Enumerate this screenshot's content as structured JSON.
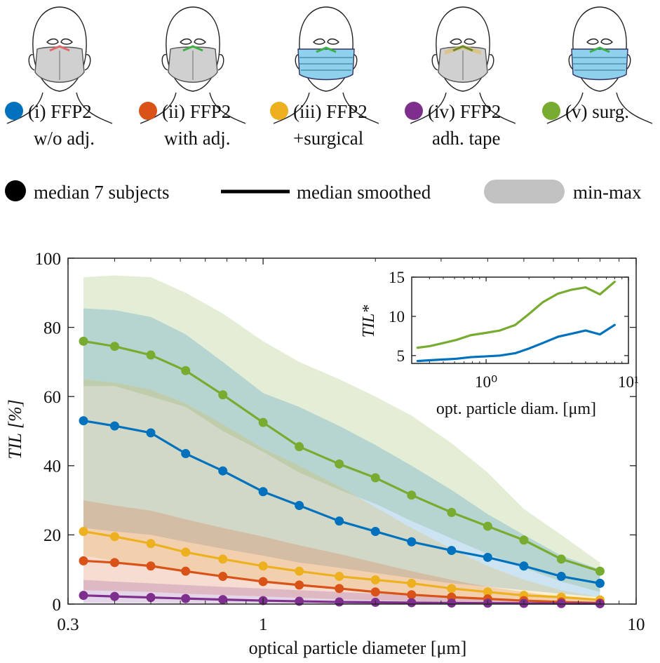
{
  "legend": {
    "masks": [
      {
        "line1": "(i) FFP2",
        "line2": "w/o adj.",
        "color": "#0072BD"
      },
      {
        "line1": "(ii) FFP2",
        "line2": "with adj.",
        "color": "#D95319"
      },
      {
        "line1": "(iii) FFP2",
        "line2": "+surgical",
        "color": "#EDB120"
      },
      {
        "line1": "(iv) FFP2",
        "line2": "adh. tape",
        "color": "#7E2F8E"
      },
      {
        "line1": "(v) surg.",
        "line2": "",
        "color": "#77AC30"
      }
    ],
    "median_label": "median 7 subjects",
    "smoothed_label": "median smoothed",
    "minmax_label": "min-max"
  },
  "chart_data": [
    {
      "type": "line",
      "xscale": "log",
      "xlim": [
        0.3,
        10
      ],
      "ylim": [
        0,
        100
      ],
      "xlabel": "optical particle diameter [μm]",
      "ylabel": "TIL [%]",
      "xticks": [
        {
          "value": 0.3,
          "label": "0.3"
        },
        {
          "value": 1,
          "label": "1"
        },
        {
          "value": 10,
          "label": "10"
        }
      ],
      "yticks": [
        0,
        20,
        40,
        60,
        80,
        100
      ],
      "x": [
        0.33,
        0.4,
        0.5,
        0.62,
        0.78,
        1.0,
        1.25,
        1.6,
        2.0,
        2.5,
        3.2,
        4.0,
        5.0,
        6.3,
        8.0
      ],
      "series": [
        {
          "name": "(v) surg.",
          "color": "#77AC30",
          "values": [
            76,
            74.5,
            72,
            67.5,
            60.5,
            52.5,
            45.5,
            40.5,
            36.5,
            31.5,
            26.5,
            22.5,
            18.5,
            13,
            9.5
          ],
          "min": [
            63,
            63,
            60,
            57,
            50,
            44,
            38,
            33,
            29,
            24,
            19,
            14.5,
            10.5,
            6.5,
            3.5
          ],
          "max": [
            94.5,
            95,
            94.5,
            90,
            84,
            76,
            70,
            65,
            60,
            54.5,
            46.5,
            38,
            27.5,
            20,
            12
          ]
        },
        {
          "name": "(i) FFP2 w/o adj.",
          "color": "#0072BD",
          "values": [
            53,
            51.5,
            49.5,
            43.5,
            38.5,
            32.5,
            28.5,
            24,
            21,
            18,
            15.5,
            13.5,
            11,
            8,
            6
          ],
          "min": [
            22,
            21,
            20,
            18,
            16,
            14,
            12,
            10.5,
            9,
            7.5,
            6,
            5,
            4,
            3,
            2
          ],
          "max": [
            85.5,
            85,
            83,
            78,
            70,
            61,
            57,
            51.5,
            46,
            40,
            33,
            26,
            20,
            14,
            10
          ]
        },
        {
          "name": "(iii) FFP2 +surgical",
          "color": "#EDB120",
          "values": [
            21,
            19.5,
            17.5,
            15,
            13,
            11,
            9.5,
            8,
            7,
            6,
            4.5,
            3.5,
            2.5,
            2,
            1.2
          ],
          "min": [
            14,
            12.5,
            11,
            9.5,
            8,
            6.5,
            5.5,
            4.5,
            3.5,
            2.8,
            2.2,
            1.6,
            1.1,
            0.7,
            0.3
          ],
          "max": [
            65,
            64,
            62,
            58,
            52,
            45,
            40,
            34,
            28,
            22,
            16,
            11,
            7,
            4,
            2
          ]
        },
        {
          "name": "(ii) FFP2 with adj.",
          "color": "#D95319",
          "values": [
            12.5,
            12,
            11,
            9.5,
            8,
            6.5,
            5.5,
            4.5,
            3.5,
            2.7,
            2,
            1.5,
            1,
            0.6,
            0.3
          ],
          "min": [
            4,
            3.8,
            3.5,
            3,
            2.6,
            2.2,
            1.8,
            1.4,
            1.1,
            0.8,
            0.6,
            0.4,
            0.3,
            0.2,
            0.1
          ],
          "max": [
            30,
            28.5,
            27,
            24.5,
            22,
            19.5,
            17,
            14.5,
            12,
            9.5,
            7,
            5,
            3.5,
            2,
            1
          ]
        },
        {
          "name": "(iv) FFP2 adh. tape",
          "color": "#7E2F8E",
          "values": [
            2.5,
            2.2,
            1.9,
            1.6,
            1.3,
            1,
            0.8,
            0.6,
            0.5,
            0.4,
            0.3,
            0.25,
            0.2,
            0.15,
            0.1
          ],
          "min": [
            0.3,
            0.3,
            0.3,
            0.25,
            0.2,
            0.2,
            0.15,
            0.1,
            0.1,
            0.1,
            0.05,
            0.05,
            0.05,
            0.05,
            0.05
          ],
          "max": [
            7,
            6.5,
            6,
            5.5,
            5,
            4.5,
            4,
            3.5,
            3,
            2.5,
            2,
            1.5,
            1.2,
            0.8,
            0.5
          ]
        }
      ]
    },
    {
      "type": "line",
      "xscale": "log",
      "xlim": [
        0.3,
        10
      ],
      "ylim": [
        4,
        15
      ],
      "xlabel": "opt. particle diam. [μm]",
      "ylabel": "TIL*",
      "xticks": [
        {
          "value": 1,
          "label": "10⁰"
        },
        {
          "value": 10,
          "label": "10¹"
        }
      ],
      "yticks": [
        5,
        10,
        15
      ],
      "series": [
        {
          "color": "#77AC30",
          "x": [
            0.33,
            0.4,
            0.5,
            0.62,
            0.78,
            1.0,
            1.25,
            1.6,
            2.0,
            2.5,
            3.2,
            4.0,
            5.0,
            6.3,
            8.0
          ],
          "values": [
            6,
            6.2,
            6.6,
            7.0,
            7.6,
            7.9,
            8.2,
            8.9,
            10.3,
            11.8,
            12.9,
            13.4,
            13.7,
            12.8,
            14.4
          ]
        },
        {
          "color": "#0072BD",
          "x": [
            0.33,
            0.4,
            0.5,
            0.62,
            0.78,
            1.0,
            1.25,
            1.6,
            2.0,
            2.5,
            3.2,
            4.0,
            5.0,
            6.3,
            8.0
          ],
          "values": [
            4.3,
            4.4,
            4.5,
            4.6,
            4.8,
            4.9,
            5.0,
            5.3,
            5.9,
            6.6,
            7.4,
            7.8,
            8.2,
            7.7,
            8.9
          ]
        }
      ]
    }
  ]
}
